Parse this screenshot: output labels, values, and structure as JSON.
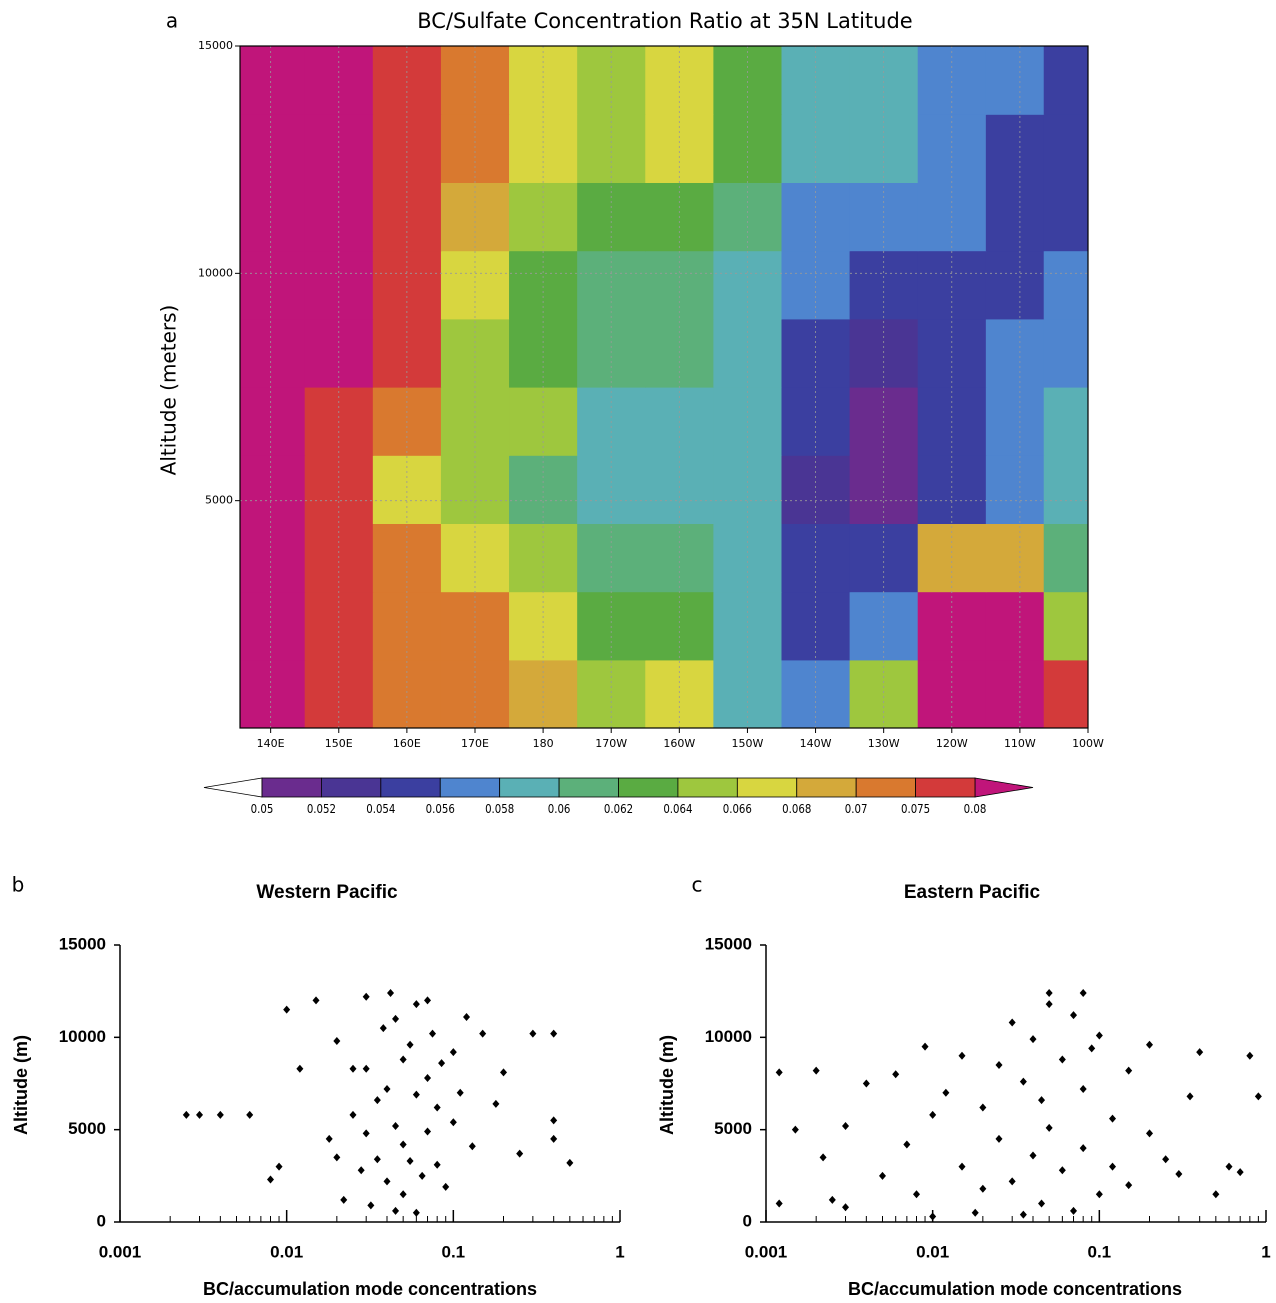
{
  "chart_data": [
    {
      "type": "contour",
      "panel_label": "a",
      "title": "BC/Sulfate Concentration Ratio at 35N Latitude",
      "ylabel": "Altitude (meters)",
      "xlim": [
        135.5,
        260
      ],
      "ylim": [
        0,
        15000
      ],
      "xticks": [
        {
          "value": 140,
          "label": "140E"
        },
        {
          "value": 150,
          "label": "150E"
        },
        {
          "value": 160,
          "label": "160E"
        },
        {
          "value": 170,
          "label": "170E"
        },
        {
          "value": 180,
          "label": "180"
        },
        {
          "value": 190,
          "label": "170W"
        },
        {
          "value": 200,
          "label": "160W"
        },
        {
          "value": 210,
          "label": "150W"
        },
        {
          "value": 220,
          "label": "140W"
        },
        {
          "value": 230,
          "label": "130W"
        },
        {
          "value": 240,
          "label": "120W"
        },
        {
          "value": 250,
          "label": "110W"
        },
        {
          "value": 260,
          "label": "100W"
        }
      ],
      "yticks": [
        5000,
        10000,
        15000
      ],
      "grid": true,
      "x": [
        140,
        150,
        160,
        170,
        180,
        190,
        200,
        210,
        220,
        230,
        240,
        250,
        257
      ],
      "y": [
        750,
        2250,
        3750,
        5250,
        6750,
        8250,
        9750,
        11250,
        12750,
        14250
      ],
      "z": [
        [
          0.085,
          0.078,
          0.072,
          0.072,
          0.068,
          0.065,
          0.066,
          0.059,
          0.057,
          0.065,
          0.085,
          0.085,
          0.075
        ],
        [
          0.085,
          0.078,
          0.072,
          0.07,
          0.067,
          0.062,
          0.063,
          0.058,
          0.054,
          0.057,
          0.085,
          0.08,
          0.065
        ],
        [
          0.085,
          0.078,
          0.07,
          0.067,
          0.064,
          0.061,
          0.06,
          0.059,
          0.054,
          0.055,
          0.068,
          0.068,
          0.06
        ],
        [
          0.085,
          0.078,
          0.067,
          0.065,
          0.061,
          0.059,
          0.059,
          0.059,
          0.053,
          0.051,
          0.054,
          0.057,
          0.059
        ],
        [
          0.085,
          0.078,
          0.072,
          0.065,
          0.064,
          0.059,
          0.059,
          0.058,
          0.054,
          0.051,
          0.054,
          0.056,
          0.058
        ],
        [
          0.085,
          0.08,
          0.075,
          0.065,
          0.063,
          0.06,
          0.06,
          0.058,
          0.055,
          0.053,
          0.055,
          0.056,
          0.057
        ],
        [
          0.085,
          0.082,
          0.076,
          0.067,
          0.062,
          0.061,
          0.061,
          0.059,
          0.056,
          0.054,
          0.055,
          0.055,
          0.056
        ],
        [
          0.085,
          0.082,
          0.076,
          0.069,
          0.064,
          0.063,
          0.063,
          0.061,
          0.057,
          0.057,
          0.056,
          0.055,
          0.055
        ],
        [
          0.085,
          0.085,
          0.076,
          0.07,
          0.066,
          0.064,
          0.066,
          0.063,
          0.059,
          0.058,
          0.057,
          0.055,
          0.054
        ],
        [
          0.085,
          0.085,
          0.078,
          0.072,
          0.067,
          0.065,
          0.067,
          0.063,
          0.059,
          0.058,
          0.057,
          0.056,
          0.054
        ]
      ],
      "levels": [
        0.05,
        0.052,
        0.054,
        0.056,
        0.058,
        0.06,
        0.062,
        0.064,
        0.066,
        0.068,
        0.07,
        0.075,
        0.08
      ],
      "colors": [
        "#ffffff",
        "#6a2c8e",
        "#4a3594",
        "#3b3fa0",
        "#4f85cf",
        "#5ab0b5",
        "#5cb07a",
        "#5aab42",
        "#9ec73e",
        "#d8d640",
        "#d4a93a",
        "#d9792f",
        "#d33a3a",
        "#c0157a"
      ]
    },
    {
      "type": "scatter",
      "panel_label": "b",
      "title": "Western Pacific",
      "xlabel": "BC/accumulation mode concentrations",
      "ylabel": "Altitude (m)",
      "log_x": true,
      "xlim": [
        0.001,
        1
      ],
      "xticks": [
        0.001,
        0.01,
        0.1,
        1
      ],
      "ylim": [
        0,
        15000
      ],
      "yticks": [
        0,
        5000,
        10000,
        15000
      ],
      "color": "#000000",
      "x": [
        0.0025,
        0.003,
        0.004,
        0.006,
        0.008,
        0.009,
        0.01,
        0.012,
        0.015,
        0.018,
        0.02,
        0.02,
        0.022,
        0.025,
        0.025,
        0.028,
        0.03,
        0.03,
        0.032,
        0.035,
        0.035,
        0.038,
        0.04,
        0.04,
        0.042,
        0.045,
        0.045,
        0.05,
        0.05,
        0.05,
        0.055,
        0.055,
        0.06,
        0.06,
        0.06,
        0.065,
        0.07,
        0.07,
        0.075,
        0.08,
        0.08,
        0.085,
        0.09,
        0.1,
        0.1,
        0.11,
        0.12,
        0.13,
        0.15,
        0.18,
        0.2,
        0.25,
        0.3,
        0.4,
        0.4,
        0.4,
        0.5,
        0.03,
        0.045,
        0.07
      ],
      "y": [
        5800,
        5800,
        5800,
        5800,
        2300,
        3000,
        11500,
        8300,
        12000,
        4500,
        9800,
        3500,
        1200,
        5800,
        8300,
        2800,
        12200,
        4800,
        900,
        6600,
        3400,
        10500,
        7200,
        2200,
        12400,
        5200,
        600,
        8800,
        4200,
        1500,
        9600,
        3300,
        11800,
        6900,
        500,
        2500,
        7800,
        4900,
        10200,
        6200,
        3100,
        8600,
        1900,
        5400,
        9200,
        7000,
        11100,
        4100,
        10200,
        6400,
        8100,
        3700,
        10200,
        5500,
        4500,
        10200,
        3200,
        8300,
        11000,
        12000
      ]
    },
    {
      "type": "scatter",
      "panel_label": "c",
      "title": "Eastern Pacific",
      "xlabel": "BC/accumulation mode concentrations",
      "ylabel": "Altitude (m)",
      "log_x": true,
      "xlim": [
        0.001,
        1
      ],
      "xticks": [
        0.001,
        0.01,
        0.1,
        1
      ],
      "ylim": [
        0,
        15000
      ],
      "yticks": [
        0,
        5000,
        10000,
        15000
      ],
      "color": "#000000",
      "x": [
        0.0012,
        0.0012,
        0.0015,
        0.002,
        0.0022,
        0.0025,
        0.003,
        0.003,
        0.004,
        0.005,
        0.006,
        0.007,
        0.008,
        0.009,
        0.01,
        0.01,
        0.012,
        0.015,
        0.015,
        0.018,
        0.02,
        0.02,
        0.025,
        0.025,
        0.03,
        0.03,
        0.035,
        0.035,
        0.04,
        0.04,
        0.045,
        0.045,
        0.05,
        0.05,
        0.06,
        0.06,
        0.07,
        0.07,
        0.08,
        0.08,
        0.09,
        0.1,
        0.1,
        0.12,
        0.12,
        0.15,
        0.15,
        0.2,
        0.2,
        0.25,
        0.3,
        0.35,
        0.4,
        0.5,
        0.6,
        0.7,
        0.8,
        0.9,
        0.05,
        0.08
      ],
      "y": [
        8100,
        1000,
        5000,
        8200,
        3500,
        1200,
        5200,
        800,
        7500,
        2500,
        8000,
        4200,
        1500,
        9500,
        5800,
        300,
        7000,
        3000,
        9000,
        500,
        6200,
        1800,
        8500,
        4500,
        10800,
        2200,
        7600,
        400,
        9900,
        3600,
        6600,
        1000,
        12400,
        5100,
        8800,
        2800,
        11200,
        600,
        7200,
        4000,
        9400,
        10100,
        1500,
        5600,
        3000,
        8200,
        2000,
        9600,
        4800,
        3400,
        2600,
        6800,
        9200,
        1500,
        3000,
        2700,
        9000,
        6800,
        11800,
        12400
      ]
    }
  ]
}
